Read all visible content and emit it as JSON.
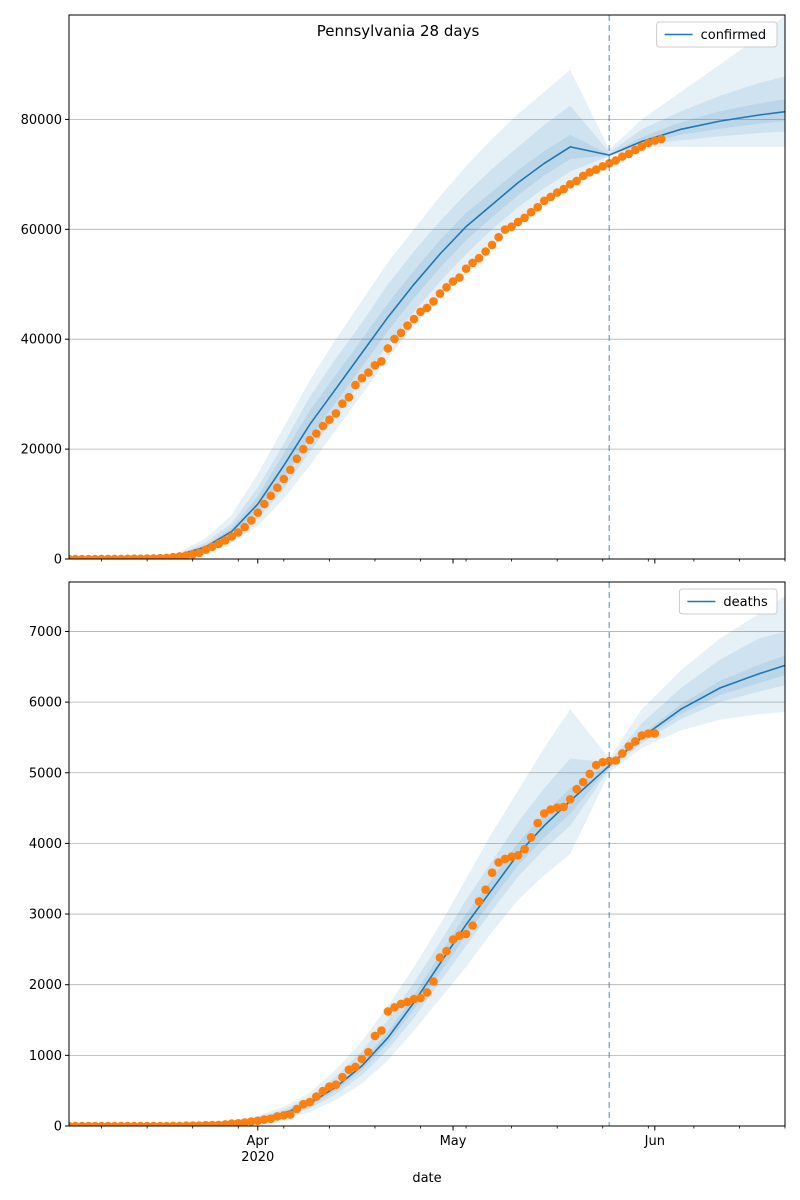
{
  "figure": {
    "title": "Pennsylvania 28 days",
    "xlabel": "date"
  },
  "colors": {
    "model": "#1f77b4",
    "observed": "#ff7f0e",
    "band": "#1f77b4",
    "vline": "#1f77b4",
    "grid": "#b0b0b0"
  },
  "chart_data": [
    {
      "type": "line",
      "title": "Pennsylvania 28 days",
      "xlabel": "",
      "ylabel": "",
      "x_range": [
        "2020-03-03",
        "2020-06-21"
      ],
      "ylim": [
        0,
        99000
      ],
      "yticks": [
        0,
        20000,
        40000,
        60000,
        80000
      ],
      "xticks": [
        {
          "date": "2020-04-01",
          "label": "Apr",
          "sublabel": "2020"
        },
        {
          "date": "2020-05-01",
          "label": "May",
          "sublabel": ""
        },
        {
          "date": "2020-06-01",
          "label": "Jun",
          "sublabel": ""
        }
      ],
      "grid": "y-major",
      "legend": {
        "placement": "top-right",
        "entries": [
          "confirmed"
        ]
      },
      "forecast_start": "2020-05-25",
      "model": {
        "name": "confirmed",
        "dates": [
          "2020-03-03",
          "2020-03-10",
          "2020-03-17",
          "2020-03-20",
          "2020-03-24",
          "2020-03-28",
          "2020-04-01",
          "2020-04-05",
          "2020-04-09",
          "2020-04-13",
          "2020-04-17",
          "2020-04-21",
          "2020-04-25",
          "2020-04-29",
          "2020-05-03",
          "2020-05-07",
          "2020-05-11",
          "2020-05-15",
          "2020-05-19",
          "2020-05-25",
          "2020-05-30",
          "2020-06-05",
          "2020-06-11",
          "2020-06-17",
          "2020-06-21"
        ],
        "values": [
          0,
          50,
          300,
          800,
          2200,
          5000,
          10000,
          17000,
          24500,
          31000,
          37500,
          44000,
          50000,
          55500,
          60500,
          64500,
          68500,
          72000,
          75000,
          73500,
          76000,
          78200,
          79700,
          80800,
          81400
        ],
        "bands": [
          {
            "lower": [
              0,
              30,
              180,
              480,
              1300,
              3000,
              6000,
              11000,
              17000,
              23500,
              30000,
              36500,
              42500,
              48000,
              53000,
              57500,
              61500,
              65000,
              68000,
              73300,
              75000,
              75000,
              75000,
              75000,
              75000
            ],
            "upper": [
              0,
              80,
              500,
              1300,
              3800,
              8000,
              15500,
              24000,
              32500,
              40000,
              47000,
              54000,
              60000,
              66000,
              71500,
              76500,
              81000,
              85000,
              89000,
              74500,
              80000,
              85000,
              90000,
              95000,
              99000
            ]
          },
          {
            "lower": [
              0,
              38,
              220,
              600,
              1600,
              3700,
              7300,
              12800,
              19500,
              26000,
              32500,
              39000,
              45000,
              50500,
              55500,
              60000,
              64000,
              67500,
              70500,
              73400,
              75300,
              76200,
              76900,
              77500,
              77800
            ],
            "upper": [
              0,
              65,
              400,
              1000,
              3000,
              6500,
              13000,
              21000,
              29500,
              36500,
              43000,
              50000,
              56000,
              61500,
              66500,
              71000,
              75000,
              79000,
              82500,
              74000,
              78200,
              81500,
              84300,
              86600,
              87800
            ]
          },
          {
            "lower": [
              0,
              45,
              260,
              700,
              1900,
              4300,
              8600,
              14800,
              22000,
              28500,
              35000,
              41500,
              47500,
              53000,
              58000,
              62200,
              66200,
              69800,
              72800,
              73450,
              75500,
              77200,
              78300,
              79200,
              79700
            ],
            "upper": [
              0,
              55,
              340,
              900,
              2500,
              5700,
              11400,
              19200,
              27000,
              33500,
              40000,
              46500,
              52500,
              58000,
              63000,
              66800,
              70800,
              74200,
              77200,
              73600,
              76800,
              79500,
              81500,
              82900,
              83700
            ]
          }
        ]
      },
      "observed": {
        "name": "confirmed",
        "start_date": "2020-03-03",
        "values": [
          0,
          1,
          2,
          6,
          8,
          10,
          12,
          15,
          21,
          33,
          47,
          63,
          77,
          112,
          152,
          206,
          336,
          479,
          644,
          851,
          1127,
          1687,
          2218,
          2751,
          3394,
          4087,
          4843,
          5805,
          7016,
          8420,
          10017,
          11510,
          12980,
          14559,
          16239,
          18228,
          19979,
          21655,
          22833,
          24199,
          25345,
          26490,
          28258,
          29441,
          31652,
          32902,
          33914,
          35249,
          35987,
          38328,
          40049,
          41164,
          42467,
          43655,
          44988,
          45703,
          46887,
          48305,
          49437,
          50494,
          51227,
          52835,
          53881,
          54739,
          55954,
          57154,
          58560,
          59939,
          60478,
          61341,
          62101,
          63107,
          64019,
          65185,
          65896,
          66674,
          67311,
          68186,
          68800,
          69719,
          70369,
          70873,
          71470,
          72016,
          72539,
          73236,
          73742,
          74409,
          75043,
          75699,
          76139,
          76436
        ]
      }
    },
    {
      "type": "line",
      "title": "",
      "xlabel": "date",
      "ylabel": "",
      "x_range": [
        "2020-03-03",
        "2020-06-21"
      ],
      "ylim": [
        0,
        7700
      ],
      "yticks": [
        0,
        1000,
        2000,
        3000,
        4000,
        5000,
        6000,
        7000
      ],
      "xticks": [
        {
          "date": "2020-04-01",
          "label": "Apr",
          "sublabel": "2020"
        },
        {
          "date": "2020-05-01",
          "label": "May",
          "sublabel": ""
        },
        {
          "date": "2020-06-01",
          "label": "Jun",
          "sublabel": ""
        }
      ],
      "grid": "y-major",
      "legend": {
        "placement": "top-right",
        "entries": [
          "deaths"
        ]
      },
      "forecast_start": "2020-05-25",
      "model": {
        "name": "deaths",
        "dates": [
          "2020-03-03",
          "2020-03-15",
          "2020-03-22",
          "2020-03-28",
          "2020-04-01",
          "2020-04-05",
          "2020-04-09",
          "2020-04-13",
          "2020-04-17",
          "2020-04-21",
          "2020-04-25",
          "2020-04-29",
          "2020-05-03",
          "2020-05-07",
          "2020-05-11",
          "2020-05-15",
          "2020-05-19",
          "2020-05-25",
          "2020-05-30",
          "2020-06-05",
          "2020-06-11",
          "2020-06-17",
          "2020-06-21"
        ],
        "values": [
          0,
          5,
          20,
          50,
          100,
          180,
          320,
          550,
          850,
          1250,
          1750,
          2300,
          2850,
          3350,
          3850,
          4250,
          4600,
          5100,
          5500,
          5900,
          6200,
          6400,
          6520
        ],
        "bands": [
          {
            "lower": [
              0,
              3,
              12,
              30,
              60,
              110,
              200,
              370,
              600,
              930,
              1350,
              1800,
              2250,
              2750,
              3200,
              3550,
              3850,
              5000,
              5350,
              5600,
              5750,
              5830,
              5860
            ],
            "upper": [
              0,
              8,
              30,
              75,
              150,
              270,
              470,
              800,
              1200,
              1700,
              2250,
              2850,
              3500,
              4150,
              4750,
              5350,
              5900,
              5200,
              5900,
              6450,
              6900,
              7250,
              7500
            ]
          },
          {
            "lower": [
              0,
              4,
              15,
              38,
              75,
              140,
              250,
              450,
              720,
              1080,
              1530,
              2040,
              2550,
              3050,
              3530,
              3920,
              4250,
              5050,
              5420,
              5760,
              6000,
              6150,
              6240
            ],
            "upper": [
              0,
              7,
              26,
              65,
              130,
              230,
              410,
              700,
              1060,
              1500,
              2030,
              2600,
              3200,
              3750,
              4300,
              4780,
              5200,
              5150,
              5700,
              6200,
              6600,
              6900,
              7000
            ]
          },
          {
            "lower": [
              0,
              4,
              17,
              44,
              88,
              160,
              285,
              500,
              790,
              1170,
              1650,
              2170,
              2700,
              3200,
              3690,
              4080,
              4420,
              5080,
              5460,
              5830,
              6100,
              6270,
              6380
            ],
            "upper": [
              0,
              6,
              23,
              56,
              112,
              200,
              355,
              600,
              910,
              1330,
              1850,
              2430,
              3000,
              3500,
              4010,
              4420,
              4780,
              5120,
              5540,
              5970,
              6300,
              6530,
              6660
            ]
          }
        ]
      },
      "observed": {
        "name": "deaths",
        "start_date": "2020-03-03",
        "values": [
          0,
          0,
          0,
          0,
          0,
          0,
          0,
          0,
          0,
          0,
          0,
          0,
          0,
          0,
          0,
          0,
          2,
          2,
          4,
          6,
          7,
          11,
          14,
          16,
          22,
          34,
          38,
          48,
          63,
          74,
          90,
          102,
          136,
          150,
          162,
          240,
          309,
          338,
          416,
          494,
          557,
          584,
          691,
          797,
          836,
          949,
          1044,
          1276,
          1350,
          1622,
          1680,
          1728,
          1756,
          1796,
          1811,
          1891,
          2046,
          2384,
          2476,
          2639,
          2693,
          2717,
          2838,
          3179,
          3345,
          3586,
          3731,
          3780,
          3812,
          3832,
          3918,
          4087,
          4287,
          4425,
          4480,
          4505,
          4517,
          4624,
          4767,
          4869,
          4984,
          5108,
          5150,
          5165,
          5173,
          5274,
          5373,
          5444,
          5528,
          5555,
          5557
        ]
      }
    }
  ]
}
